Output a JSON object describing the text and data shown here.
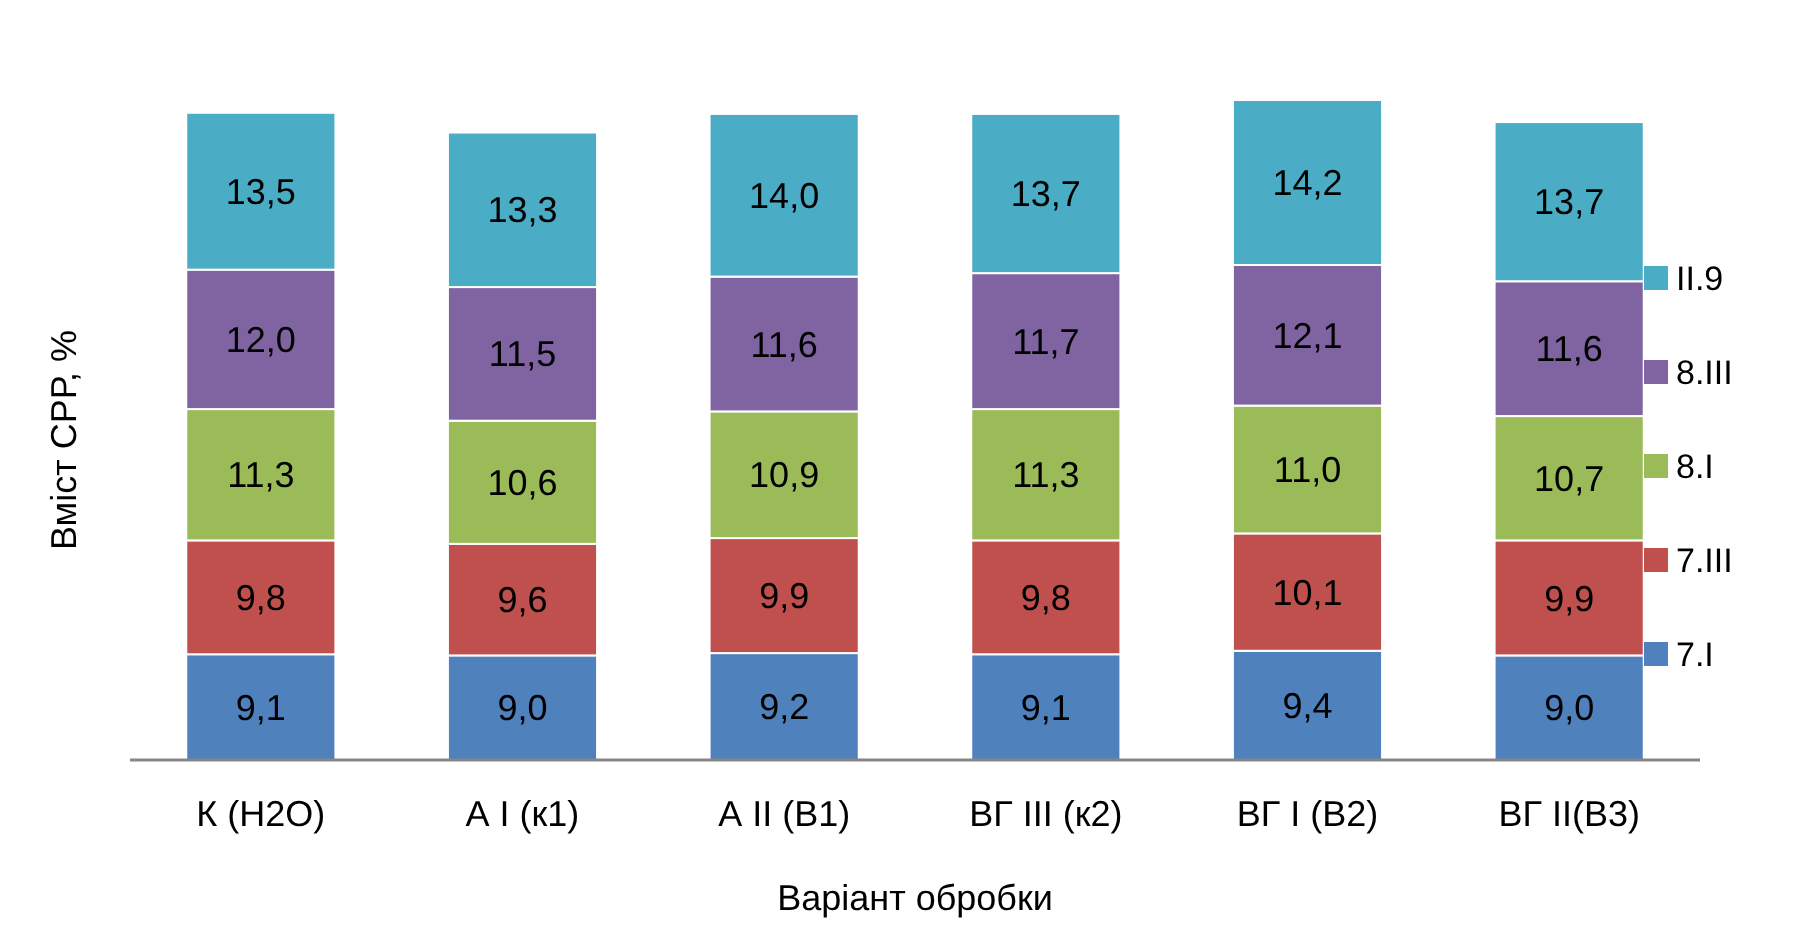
{
  "chart_data": {
    "type": "bar",
    "stacked": true,
    "xlabel": "Варіант обробки",
    "ylabel": "Вміст СРР, %",
    "categories": [
      "К (Н2О)",
      "А І (к1)",
      "А ІІ (В1)",
      "ВГ ІІІ (к2)",
      "ВГ І (В2)",
      "ВГ ІІ(В3)"
    ],
    "series": [
      {
        "name": "7.І",
        "color": "#4f81bd",
        "values": [
          9.1,
          9.0,
          9.2,
          9.1,
          9.4,
          9.0
        ],
        "value_labels": [
          "9,1",
          "9,0",
          "9,2",
          "9,1",
          "9,4",
          "9,0"
        ]
      },
      {
        "name": "7.ІІІ",
        "color": "#c0504d",
        "values": [
          9.8,
          9.6,
          9.9,
          9.8,
          10.1,
          9.9
        ],
        "value_labels": [
          "9,8",
          "9,6",
          "9,9",
          "9,8",
          "10,1",
          "9,9"
        ]
      },
      {
        "name": "8.І",
        "color": "#9bbb59",
        "values": [
          11.3,
          10.6,
          10.9,
          11.3,
          11.0,
          10.7
        ],
        "value_labels": [
          "11,3",
          "10,6",
          "10,9",
          "11,3",
          "11,0",
          "10,7"
        ]
      },
      {
        "name": "8.ІІІ",
        "color": "#8064a2",
        "values": [
          12.0,
          11.5,
          11.6,
          11.7,
          12.1,
          11.6
        ],
        "value_labels": [
          "12,0",
          "11,5",
          "11,6",
          "11,7",
          "12,1",
          "11,6"
        ]
      },
      {
        "name": "ІІ.9",
        "color": "#4bacc6",
        "values": [
          13.5,
          13.3,
          14.0,
          13.7,
          14.2,
          13.7
        ],
        "value_labels": [
          "13,5",
          "13,3",
          "14,0",
          "13,7",
          "14,2",
          "13,7"
        ]
      }
    ],
    "tick_labels": "x",
    "legend": "right"
  }
}
